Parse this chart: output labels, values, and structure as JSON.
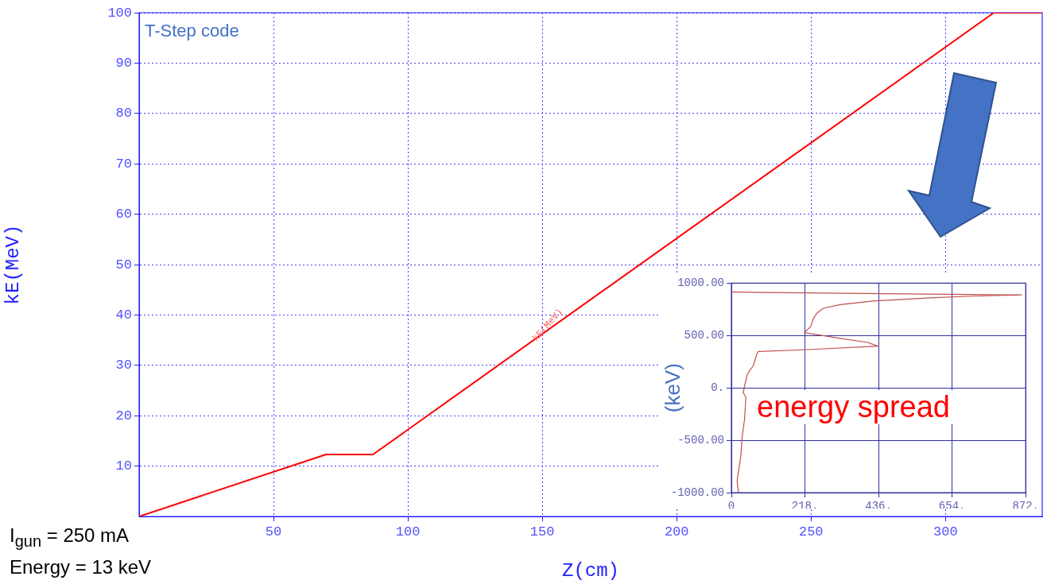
{
  "chart_data": [
    {
      "type": "line",
      "xlabel": "Z(cm)",
      "ylabel": "kE(MeV)",
      "series": [
        {
          "color": "#ff0000",
          "x": [
            0,
            69.5,
            87,
            318,
            336
          ],
          "values": [
            0,
            12.3,
            12.3,
            100,
            100
          ]
        }
      ],
      "xlim": [
        0,
        336
      ],
      "xticks": [
        50,
        100,
        150,
        200,
        250,
        300
      ],
      "ylim": [
        0,
        100
      ],
      "yticks": [
        10,
        20,
        30,
        40,
        50,
        60,
        70,
        80,
        90,
        100
      ],
      "grid": true,
      "legend": false,
      "marker": "none",
      "line_style": "solid",
      "annotations": [
        "T-Step code",
        "I$_{gun}$ = 250 mA",
        "Energy = 13 keV",
        {
          "text": "kE(MeV)",
          "x": 152,
          "y": 38
        }
      ]
    },
    {
      "type": "line",
      "ylabel": "(keV)",
      "series": [
        {
          "color": "#c0504d",
          "x": [
            21,
            17,
            28,
            32,
            39,
            43,
            35,
            46,
            54,
            65,
            76,
            80,
            216,
            434,
            404,
            323,
            264,
            216,
            235,
            242,
            253,
            272,
            323,
            419,
            589,
            714,
            860,
            456,
            102,
            0
          ],
          "values": [
            -1000,
            -883,
            -650,
            -464,
            -300,
            -91,
            -44,
            119,
            166,
            212,
            329,
            347,
            364,
            399,
            434,
            473,
            503,
            527,
            585,
            655,
            713,
            760,
            795,
            830,
            860,
            876,
            888,
            900,
            911,
            916
          ]
        }
      ],
      "xlim": [
        0,
        872
      ],
      "xticks": [
        {
          "value": 0,
          "label": "0"
        },
        {
          "value": 218,
          "label": "218."
        },
        {
          "value": 436,
          "label": "436."
        },
        {
          "value": 654,
          "label": "654."
        },
        {
          "value": 872,
          "label": "872."
        }
      ],
      "ylim": [
        -1000,
        1000
      ],
      "yticks": [
        {
          "value": -1000,
          "label": "-1000.00"
        },
        {
          "value": -500,
          "label": "-500.00"
        },
        {
          "value": 0,
          "label": "0."
        },
        {
          "value": 500,
          "label": "500.00"
        },
        {
          "value": 1000,
          "label": "1000.00"
        }
      ],
      "grid": true,
      "legend": false,
      "marker": "none",
      "line_style": "solid",
      "annotations": [
        "energy spread"
      ]
    }
  ]
}
